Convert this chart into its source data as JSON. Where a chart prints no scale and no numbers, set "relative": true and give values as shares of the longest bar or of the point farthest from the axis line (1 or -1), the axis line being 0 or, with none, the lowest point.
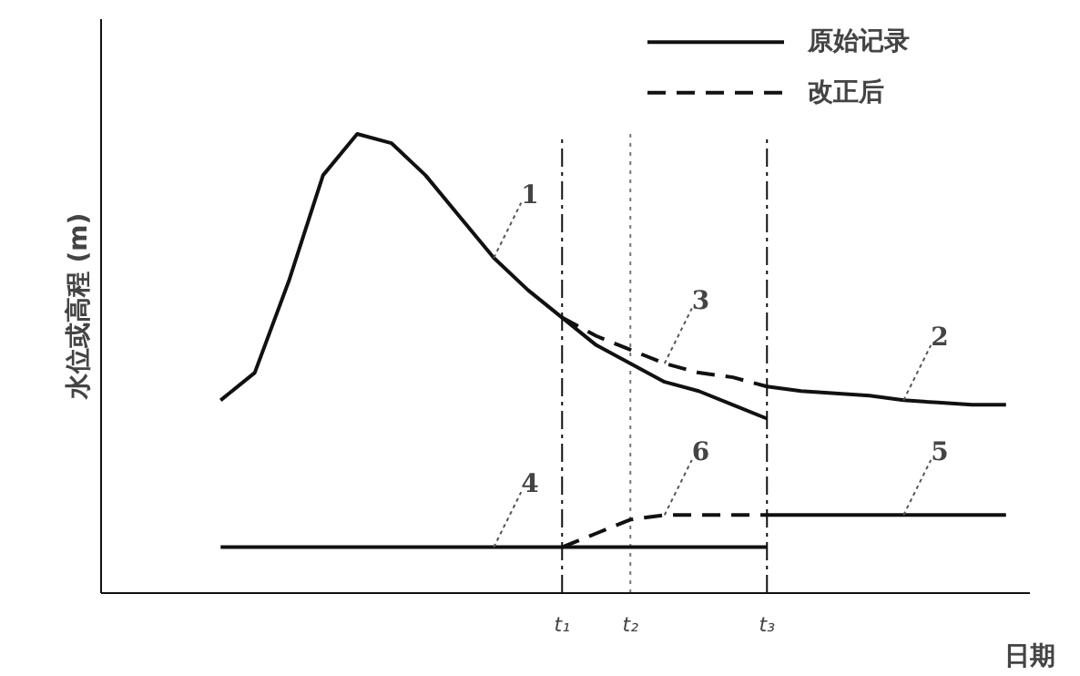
{
  "chart_data": {
    "type": "line",
    "relative": true,
    "xlabel": "日期",
    "ylabel": "水位或高程 (m)",
    "categories": [
      null,
      null,
      null,
      null,
      null,
      null,
      null,
      null,
      null,
      null,
      null,
      "t₁",
      null,
      "t₂",
      null,
      null,
      null,
      "t₃",
      null,
      null,
      null,
      null,
      null,
      null,
      null
    ],
    "series": [
      {
        "name": "1",
        "color": "#111111",
        "line_style": "solid",
        "values": [
          null,
          0.42,
          0.48,
          0.68,
          0.91,
          1.0,
          0.98,
          0.91,
          0.82,
          0.73,
          0.66,
          0.6,
          0.54,
          0.5,
          0.46,
          0.44,
          0.41,
          0.38,
          null,
          null,
          null,
          null,
          null,
          null,
          null
        ]
      },
      {
        "name": "3",
        "color": "#111111",
        "line_style": "dashed",
        "values": [
          null,
          null,
          null,
          null,
          null,
          null,
          null,
          null,
          null,
          null,
          null,
          0.6,
          0.56,
          0.53,
          0.5,
          0.48,
          0.47,
          0.45,
          null,
          null,
          null,
          null,
          null,
          null,
          null
        ]
      },
      {
        "name": "2",
        "color": "#111111",
        "line_style": "solid",
        "values": [
          null,
          null,
          null,
          null,
          null,
          null,
          null,
          null,
          null,
          null,
          null,
          null,
          null,
          null,
          null,
          null,
          null,
          0.45,
          0.44,
          0.435,
          0.43,
          0.42,
          0.415,
          0.41,
          0.41
        ]
      },
      {
        "name": "4",
        "color": "#111111",
        "line_style": "solid",
        "values": [
          null,
          0.1,
          0.1,
          0.1,
          0.1,
          0.1,
          0.1,
          0.1,
          0.1,
          0.1,
          0.1,
          0.1,
          0.1,
          0.1,
          0.1,
          0.1,
          0.1,
          0.1,
          null,
          null,
          null,
          null,
          null,
          null,
          null
        ]
      },
      {
        "name": "6",
        "color": "#111111",
        "line_style": "dashed",
        "values": [
          null,
          null,
          null,
          null,
          null,
          null,
          null,
          null,
          null,
          null,
          null,
          0.1,
          0.13,
          0.16,
          0.17,
          0.17,
          0.17,
          0.17,
          null,
          null,
          null,
          null,
          null,
          null,
          null
        ]
      },
      {
        "name": "5",
        "color": "#111111",
        "line_style": "solid",
        "values": [
          null,
          null,
          null,
          null,
          null,
          null,
          null,
          null,
          null,
          null,
          null,
          null,
          null,
          null,
          null,
          null,
          null,
          0.17,
          0.17,
          0.17,
          0.17,
          0.17,
          0.17,
          0.17,
          0.17
        ]
      }
    ],
    "ref_lines": [
      {
        "axis": "x",
        "value": "t₁",
        "line_style": "dashdot",
        "color": "#111111"
      },
      {
        "axis": "x",
        "value": "t₂",
        "line_style": "dotted",
        "color": "#777777"
      },
      {
        "axis": "x",
        "value": "t₃",
        "line_style": "dashdot",
        "color": "#111111"
      }
    ],
    "annotations": [
      "原始记录",
      "改正后"
    ],
    "grid": false
  }
}
